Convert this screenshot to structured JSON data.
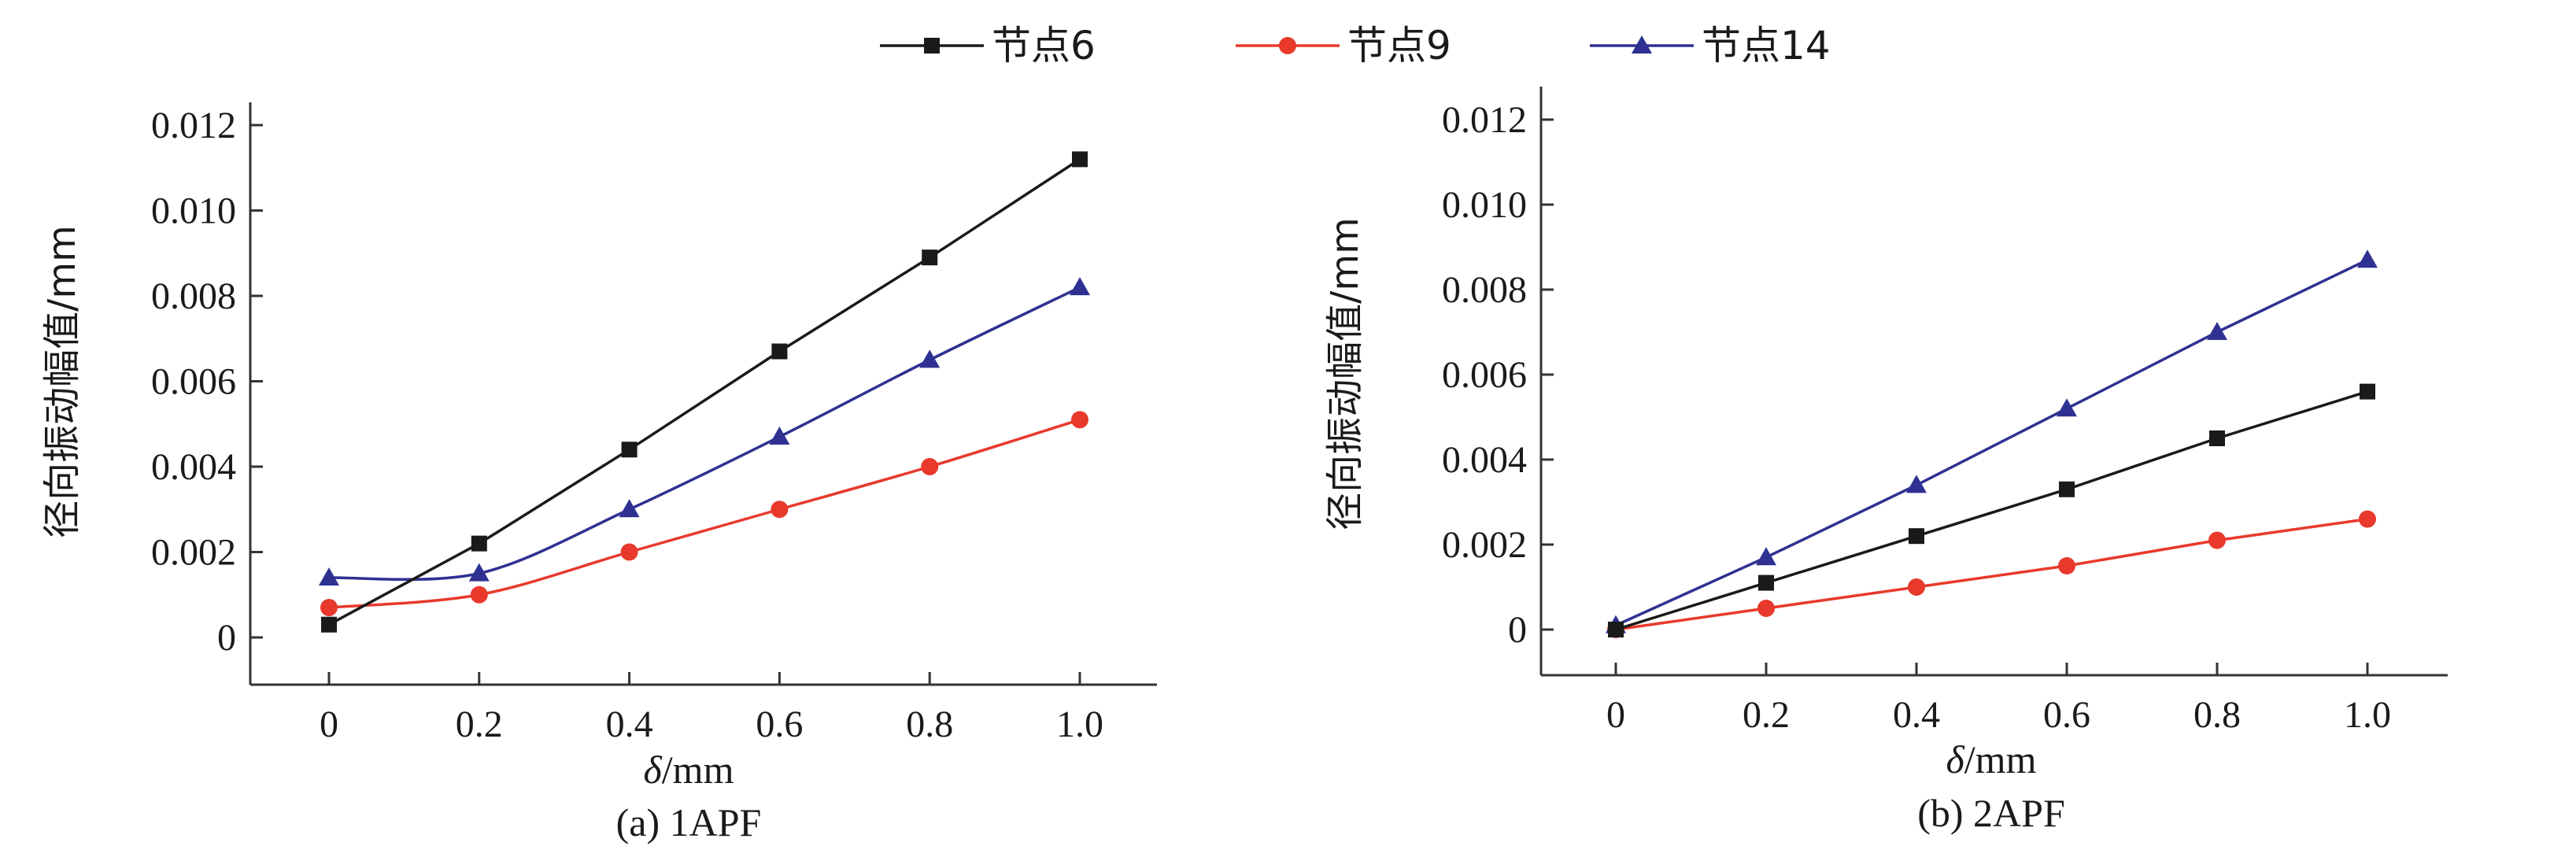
{
  "legend": [
    {
      "name": "节点6",
      "color": "#1a1a1a",
      "marker": "square"
    },
    {
      "name": "节点9",
      "color": "#e8392c",
      "marker": "circle"
    },
    {
      "name": "节点14",
      "color": "#2e3192",
      "marker": "triangle"
    }
  ],
  "chart_data": [
    {
      "type": "line",
      "caption": "(a) 1APF",
      "xlabel_symbol": "δ",
      "xlabel_unit": "/mm",
      "ylabel": "径向振动幅值/mm",
      "x": [
        0,
        0.2,
        0.4,
        0.6,
        0.8,
        1.0
      ],
      "x_tick_labels": [
        "0",
        "0.2",
        "0.4",
        "0.6",
        "0.8",
        "1.0"
      ],
      "y_tick_labels": [
        "0",
        "0.002",
        "0.004",
        "0.006",
        "0.008",
        "0.010",
        "0.012"
      ],
      "xlim": [
        -0.1,
        1.1
      ],
      "ylim": [
        -0.001,
        0.0125
      ],
      "series": [
        {
          "name": "节点6",
          "values": [
            0.0003,
            0.0022,
            0.0044,
            0.0067,
            0.0089,
            0.0112
          ]
        },
        {
          "name": "节点9",
          "values": [
            0.0007,
            0.001,
            0.002,
            0.003,
            0.004,
            0.0051
          ]
        },
        {
          "name": "节点14",
          "values": [
            0.0014,
            0.0015,
            0.003,
            0.0047,
            0.0065,
            0.0082
          ]
        }
      ]
    },
    {
      "type": "line",
      "caption": "(b) 2APF",
      "xlabel_symbol": "δ",
      "xlabel_unit": "/mm",
      "ylabel": "径向振动幅值/mm",
      "x": [
        0,
        0.2,
        0.4,
        0.6,
        0.8,
        1.0
      ],
      "x_tick_labels": [
        "0",
        "0.2",
        "0.4",
        "0.6",
        "0.8",
        "1.0"
      ],
      "y_tick_labels": [
        "0",
        "0.002",
        "0.004",
        "0.006",
        "0.008",
        "0.010",
        "0.012"
      ],
      "xlim": [
        -0.1,
        1.1
      ],
      "ylim": [
        -0.001,
        0.0125
      ],
      "series": [
        {
          "name": "节点6",
          "values": [
            0.0,
            0.0011,
            0.0022,
            0.0033,
            0.0045,
            0.0056
          ]
        },
        {
          "name": "节点9",
          "values": [
            0.0,
            0.0005,
            0.001,
            0.0015,
            0.0021,
            0.0026
          ]
        },
        {
          "name": "节点14",
          "values": [
            0.0001,
            0.0017,
            0.0034,
            0.0052,
            0.007,
            0.0087
          ]
        }
      ]
    }
  ]
}
